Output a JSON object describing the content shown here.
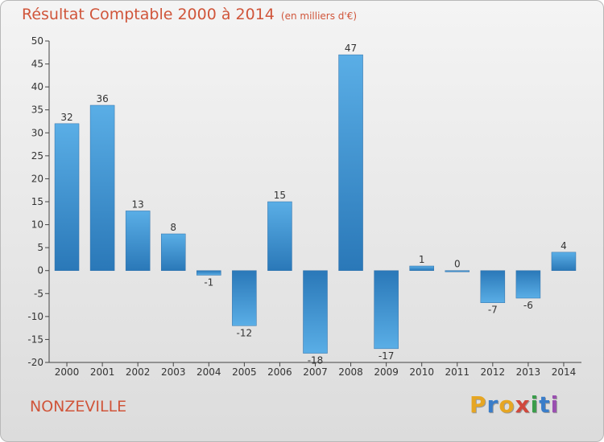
{
  "chart_data": {
    "type": "bar",
    "title": "Résultat Comptable 2000 à 2014",
    "unit": "(en milliers d'€)",
    "categories": [
      "2000",
      "2001",
      "2002",
      "2003",
      "2004",
      "2005",
      "2006",
      "2007",
      "2008",
      "2009",
      "2010",
      "2011",
      "2012",
      "2013",
      "2014"
    ],
    "values": [
      32,
      36,
      13,
      8,
      -1,
      -12,
      15,
      -18,
      47,
      -17,
      1,
      0,
      -7,
      -6,
      4
    ],
    "ylim": [
      -20,
      50
    ],
    "yticks": [
      -20,
      -15,
      -10,
      -5,
      0,
      5,
      10,
      15,
      20,
      25,
      30,
      35,
      40,
      45,
      50
    ],
    "xlabel": "",
    "ylabel": "",
    "grid": false
  },
  "footer": {
    "city": "NONZEVILLE",
    "brand_letters": [
      "P",
      "r",
      "o",
      "x",
      "i",
      "t",
      "i"
    ]
  },
  "colors": {
    "title": "#d0553a",
    "bar_light": "#5aaee6",
    "bar_dark": "#2a78b8",
    "axis": "#444444",
    "brand": [
      "#e6a623",
      "#3a7dc9",
      "#e6a623",
      "#d0483c",
      "#3a9d4a",
      "#3a7dc9",
      "#9a4fb0"
    ]
  }
}
